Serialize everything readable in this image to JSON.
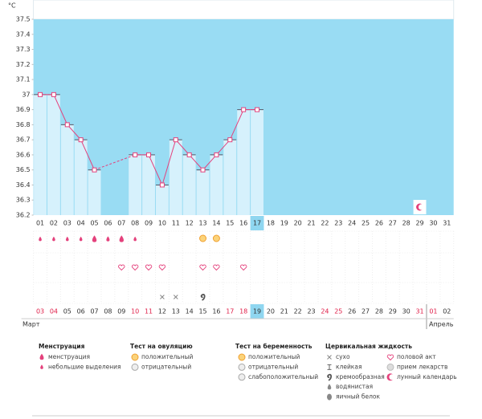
{
  "chart_data": {
    "type": "line",
    "y_unit": "°C",
    "categories": [
      "01",
      "02",
      "03",
      "04",
      "05",
      "06",
      "07",
      "08",
      "09",
      "10",
      "11",
      "12",
      "13",
      "14",
      "15",
      "16",
      "17",
      "18",
      "19",
      "20",
      "21",
      "22",
      "23",
      "24",
      "25",
      "26",
      "27",
      "28",
      "29",
      "30",
      "31"
    ],
    "series": [
      {
        "color": "#e4417c",
        "values": [
          37,
          37,
          36.8,
          36.7,
          36.5,
          null,
          null,
          36.6,
          36.6,
          36.4,
          36.7,
          36.6,
          36.5,
          36.6,
          36.7,
          36.9,
          36.9,
          null,
          null,
          null,
          null,
          null,
          null,
          null,
          null,
          null,
          null,
          null,
          null,
          null,
          null
        ]
      }
    ],
    "ylim": [
      36.2,
      37.5
    ],
    "yticks": [
      36.2,
      36.3,
      36.4,
      36.5,
      36.6,
      36.7,
      36.8,
      36.9,
      37,
      37.1,
      37.2,
      37.3,
      37.4,
      37.5
    ],
    "dates": [
      "03",
      "04",
      "05",
      "06",
      "07",
      "08",
      "09",
      "10",
      "11",
      "12",
      "13",
      "14",
      "15",
      "16",
      "17",
      "18",
      "19",
      "20",
      "21",
      "22",
      "23",
      "24",
      "25",
      "26",
      "27",
      "28",
      "29",
      "30",
      "31",
      "01",
      "02"
    ],
    "months": [
      "Март",
      "Апрель"
    ],
    "legend_groups": [
      {
        "title": "Менструация",
        "items": [
          "менструация",
          "небольшие выделения"
        ]
      },
      {
        "title": "Тест на овуляцию",
        "items": [
          "положительный",
          "отрицательный"
        ]
      },
      {
        "title": "Тест на беременность",
        "items": [
          "положительный",
          "отрицательный",
          "слабоположительный"
        ]
      },
      {
        "title": "Цервикальная жидкость",
        "items": [
          "сухо",
          "клейкая",
          "кремообразная",
          "водянистая",
          "яичный белок"
        ]
      },
      {
        "items": [
          "половой акт",
          "прием лекарств",
          "лунный календарь"
        ]
      }
    ]
  }
}
